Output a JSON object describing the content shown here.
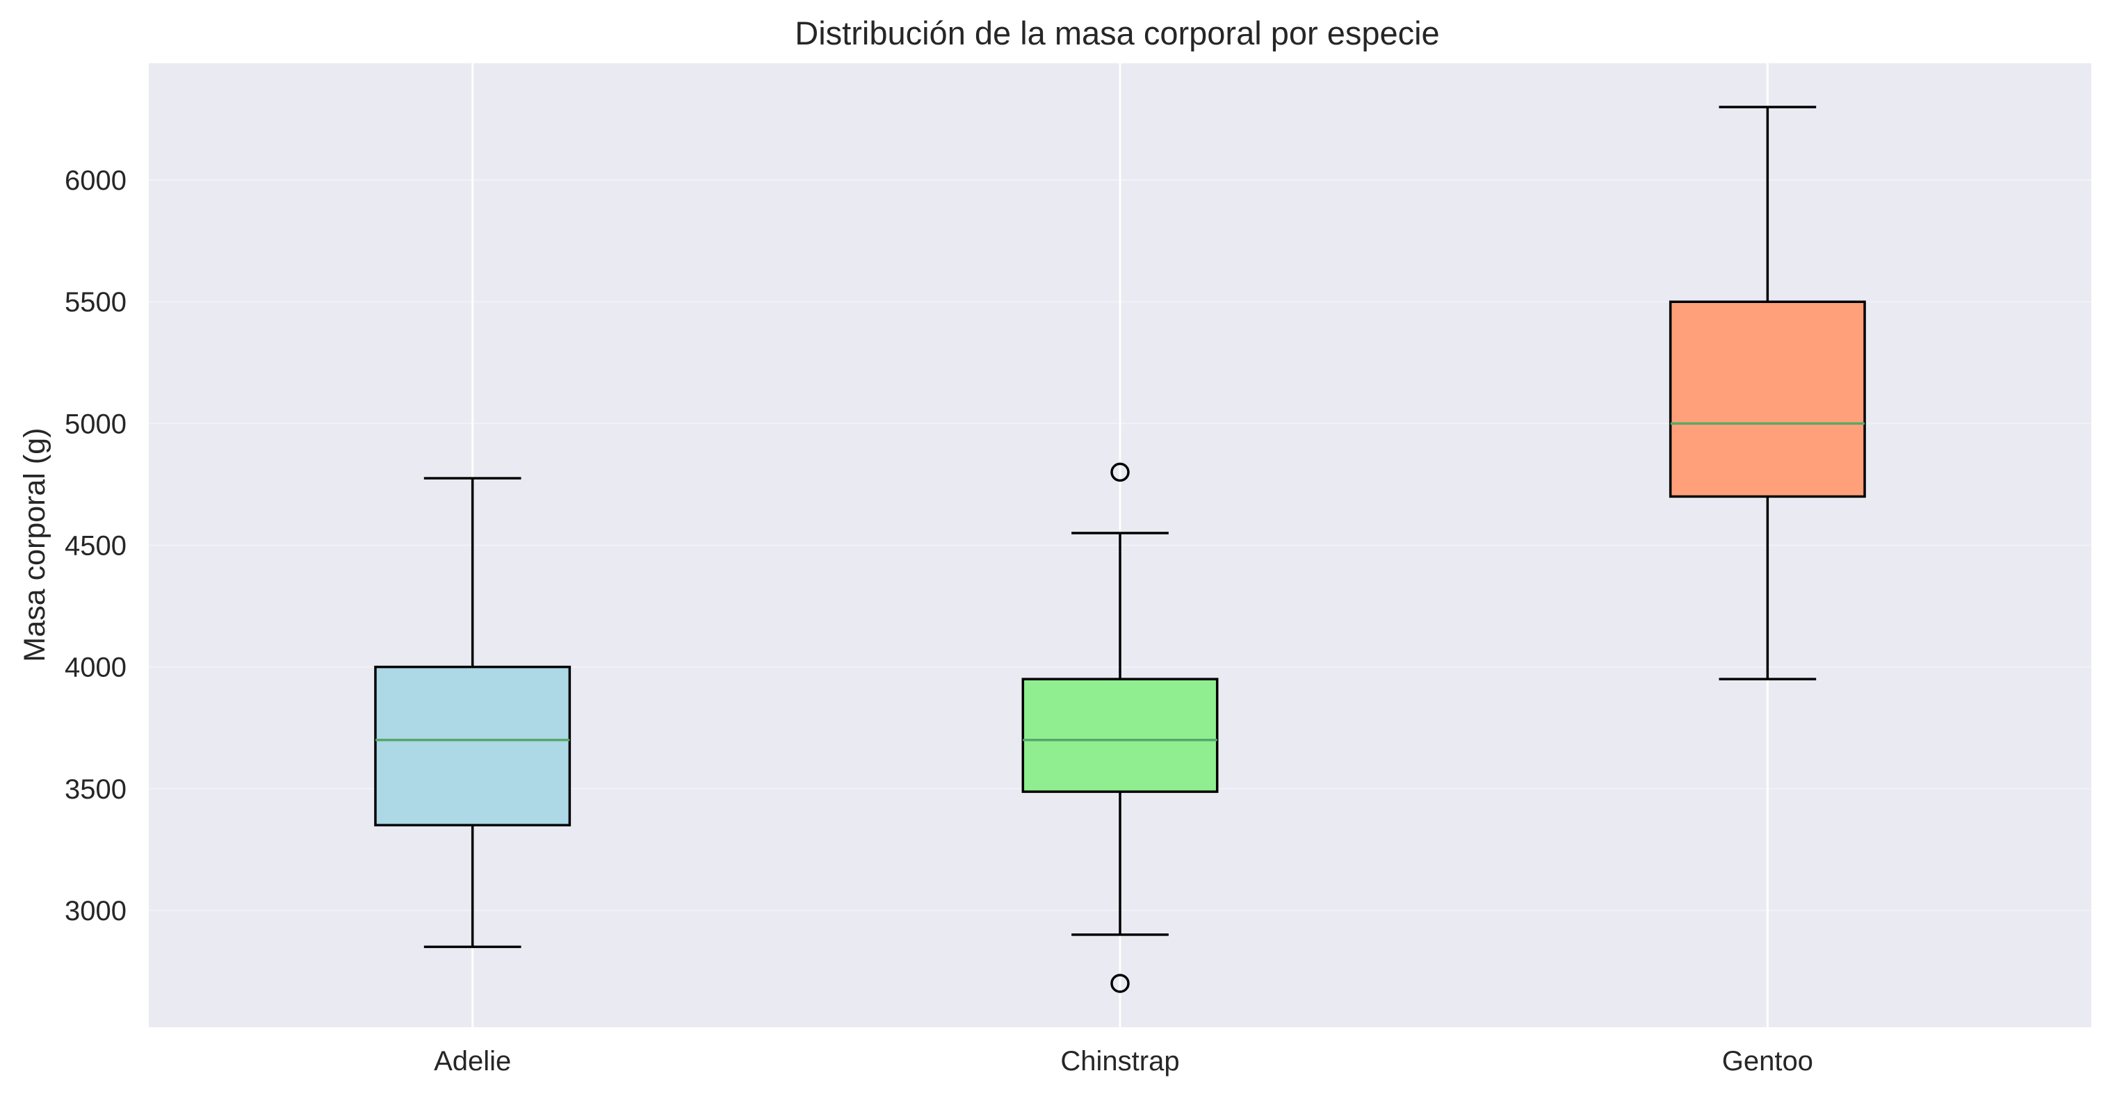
{
  "chart_data": {
    "type": "boxplot",
    "title": "Distribución de la masa corporal por especie",
    "xlabel": "",
    "ylabel": "Masa corporal (g)",
    "ylim": [
      2520,
      6480
    ],
    "yticks": [
      3000,
      3500,
      4000,
      4500,
      5000,
      5500,
      6000
    ],
    "ytick_labels": [
      "3000",
      "3500",
      "4000",
      "4500",
      "5000",
      "5500",
      "6000"
    ],
    "categories": [
      "Adelie",
      "Chinstrap",
      "Gentoo"
    ],
    "boxes": [
      {
        "category": "Adelie",
        "whisker_low": 2850,
        "q1": 3350,
        "median": 3700,
        "q3": 4000,
        "whisker_high": 4775,
        "outliers": [],
        "color": "#add8e6"
      },
      {
        "category": "Chinstrap",
        "whisker_low": 2900,
        "q1": 3487.5,
        "median": 3700,
        "q3": 3950,
        "whisker_high": 4550,
        "outliers": [
          2700,
          4800
        ],
        "color": "#90ee90"
      },
      {
        "category": "Gentoo",
        "whisker_low": 3950,
        "q1": 4700,
        "median": 5000,
        "q3": 5500,
        "whisker_high": 6300,
        "outliers": [],
        "color": "#ffa07a"
      }
    ],
    "median_color": "#55a868",
    "grid": true,
    "background_color": "#eaeaf2",
    "grid_color": "#ffffff"
  }
}
